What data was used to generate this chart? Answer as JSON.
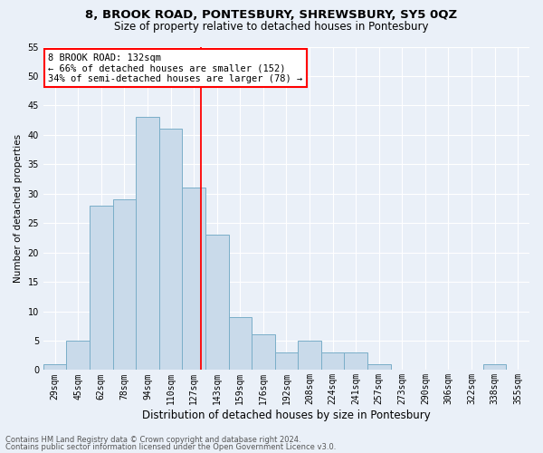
{
  "title1": "8, BROOK ROAD, PONTESBURY, SHREWSBURY, SY5 0QZ",
  "title2": "Size of property relative to detached houses in Pontesbury",
  "xlabel": "Distribution of detached houses by size in Pontesbury",
  "ylabel": "Number of detached properties",
  "categories": [
    "29sqm",
    "45sqm",
    "62sqm",
    "78sqm",
    "94sqm",
    "110sqm",
    "127sqm",
    "143sqm",
    "159sqm",
    "176sqm",
    "192sqm",
    "208sqm",
    "224sqm",
    "241sqm",
    "257sqm",
    "273sqm",
    "290sqm",
    "306sqm",
    "322sqm",
    "338sqm",
    "355sqm"
  ],
  "values": [
    1,
    5,
    28,
    29,
    43,
    41,
    31,
    23,
    9,
    6,
    3,
    5,
    3,
    3,
    1,
    0,
    0,
    0,
    0,
    1,
    0
  ],
  "bar_color": "#c9daea",
  "bar_edge_color": "#7aaec8",
  "annotation_line1": "8 BROOK ROAD: 132sqm",
  "annotation_line2": "← 66% of detached houses are smaller (152)",
  "annotation_line3": "34% of semi-detached houses are larger (78) →",
  "annotation_box_color": "white",
  "annotation_box_edge_color": "red",
  "ylim": [
    0,
    55
  ],
  "yticks": [
    0,
    5,
    10,
    15,
    20,
    25,
    30,
    35,
    40,
    45,
    50,
    55
  ],
  "footer1": "Contains HM Land Registry data © Crown copyright and database right 2024.",
  "footer2": "Contains public sector information licensed under the Open Government Licence v3.0.",
  "bg_color": "#eaf0f8",
  "plot_bg_color": "#eaf0f8",
  "grid_color": "white",
  "title1_fontsize": 9.5,
  "title2_fontsize": 8.5,
  "xlabel_fontsize": 8.5,
  "ylabel_fontsize": 7.5,
  "tick_fontsize": 7,
  "footer_fontsize": 6,
  "vline_index": 6.3125
}
